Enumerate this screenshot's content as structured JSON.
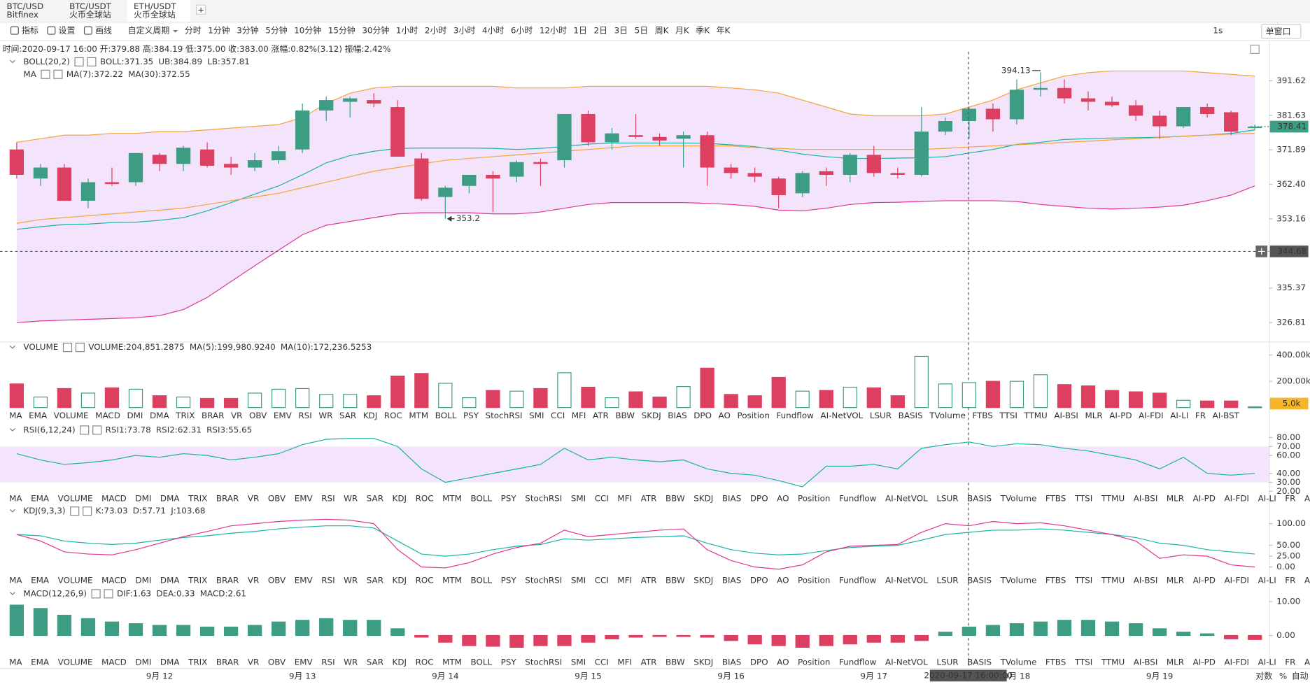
{
  "header": {
    "tabs": [
      {
        "pair": "BTC/USD",
        "exchange": "Bitfinex"
      },
      {
        "pair": "BTC/USDT",
        "exchange": "火币全球站"
      },
      {
        "pair": "ETH/USDT",
        "exchange": "火币全球站"
      }
    ],
    "add_tab": "+"
  },
  "toolbar": {
    "tools": [
      "指标",
      "设置",
      "画线"
    ],
    "custom_period": "自定义周期",
    "periods": [
      "分时",
      "1分钟",
      "3分钟",
      "5分钟",
      "10分钟",
      "15分钟",
      "30分钟",
      "1小时",
      "2小时",
      "3小时",
      "4小时",
      "6小时",
      "12小时",
      "1日",
      "2日",
      "3日",
      "5日",
      "周K",
      "月K",
      "季K",
      "年K"
    ],
    "active_period": 10,
    "refresh": "1s",
    "window_mode": "单窗口"
  },
  "info_line": [
    "时间:2020-09-17 16:00",
    "开:379.88",
    "高:384.19",
    "低:375.00",
    "收:383.00",
    "涨幅:0.82%(3.12)",
    "振幅:2.42%"
  ],
  "indicator_list": [
    "MA",
    "EMA",
    "VOLUME",
    "MACD",
    "DMI",
    "DMA",
    "TRIX",
    "BRAR",
    "VR",
    "OBV",
    "EMV",
    "RSI",
    "WR",
    "SAR",
    "KDJ",
    "ROC",
    "MTM",
    "BOLL",
    "PSY",
    "StochRSI",
    "SMI",
    "CCI",
    "MFI",
    "ATR",
    "BBW",
    "SKDJ",
    "BIAS",
    "DPO",
    "AO",
    "Position",
    "Fundflow",
    "AI-NetVOL",
    "LSUR",
    "BASIS",
    "TVolume",
    "FTBS",
    "TTSI",
    "TTMU",
    "AI-BSI",
    "MLR",
    "AI-PD",
    "AI-FDI",
    "AI-LI",
    "FR",
    "AI-BST"
  ],
  "footer": {
    "log": "对数",
    "percent": "%",
    "auto": "自动"
  },
  "chart_data": [
    {
      "type": "candlestick",
      "log": true,
      "up_color": "#3d9c84",
      "down_color": "#dd3f60",
      "legend_rows": [
        {
          "title": "BOLL(20,2)",
          "items": [
            {
              "text": "BOLL:371.35",
              "color": "#17b3a3"
            },
            {
              "text": "UB:384.89",
              "color": "#e8a21f"
            },
            {
              "text": "LB:357.81",
              "color": "#e0358f"
            }
          ]
        },
        {
          "title": "MA",
          "items": [
            {
              "text": "MA(7):372.22",
              "color": "#17b3a3"
            },
            {
              "text": "MA(30):372.55",
              "color": "#e8a21f"
            }
          ]
        }
      ],
      "categories": [
        null,
        null,
        null,
        null,
        null,
        null,
        "9月 12",
        null,
        null,
        null,
        null,
        null,
        "9月 13",
        null,
        null,
        null,
        null,
        null,
        "9月 14",
        null,
        null,
        null,
        null,
        null,
        "9月 15",
        null,
        null,
        null,
        null,
        null,
        "9月 16",
        null,
        null,
        null,
        null,
        null,
        "9月 17",
        null,
        null,
        null,
        null,
        null,
        "9月 18",
        null,
        null,
        null,
        null,
        null,
        "9月 19",
        null,
        null,
        null,
        null
      ],
      "open": [
        372,
        364,
        367,
        358,
        363,
        363,
        370.5,
        368,
        372,
        368,
        367,
        369,
        372,
        383,
        385.5,
        386,
        384,
        369.5,
        359,
        362,
        365,
        364.5,
        368.5,
        369,
        382,
        374,
        376,
        375.5,
        375,
        376,
        367,
        365.5,
        364,
        360,
        366,
        365,
        370.5,
        365.5,
        365,
        377,
        380,
        383.5,
        380.5,
        389,
        389.5,
        386.5,
        385.5,
        384.5,
        381.5,
        378.5,
        384,
        382.5,
        378
      ],
      "high": [
        374,
        368,
        368,
        364,
        367,
        371,
        371,
        373,
        374,
        370,
        371,
        373,
        385,
        387,
        387,
        388,
        386,
        371,
        362,
        365,
        366,
        369,
        369.5,
        382,
        383,
        378,
        382,
        376.5,
        377,
        377,
        368,
        367,
        364.5,
        366,
        367,
        371,
        373,
        367,
        384,
        381,
        384,
        385,
        392,
        394.13,
        392,
        388.5,
        387,
        386,
        383,
        384,
        385,
        383,
        379
      ],
      "low": [
        364,
        362,
        358,
        356,
        362,
        362,
        366,
        366,
        367,
        365,
        366,
        368,
        371,
        380,
        381,
        384,
        370,
        358,
        353.2,
        360,
        355,
        363,
        362,
        367,
        373,
        372,
        375,
        373,
        367,
        362,
        364,
        363,
        356,
        359,
        362,
        363,
        364.5,
        364,
        364.5,
        376,
        375,
        377,
        379,
        387,
        385,
        383,
        384,
        380,
        375,
        378,
        381,
        376,
        377.5
      ],
      "close": [
        365,
        367,
        358,
        363,
        362.5,
        371,
        368,
        372.5,
        367.5,
        367,
        369,
        371.5,
        383,
        386,
        386.5,
        385,
        370,
        358.5,
        361.5,
        365,
        364,
        368.5,
        368,
        382,
        374,
        376.5,
        375.5,
        374.5,
        376,
        367,
        365.5,
        364.5,
        359.5,
        365.5,
        365,
        370.5,
        365.5,
        365,
        377,
        380,
        383.5,
        380.5,
        389,
        389.5,
        386.5,
        385.5,
        384.5,
        381.5,
        378.5,
        384,
        382,
        377,
        378.41
      ],
      "series": [
        {
          "color": "#f2a33a",
          "values": [
            374,
            375,
            376,
            376,
            376.5,
            376.5,
            377,
            377,
            377.5,
            378,
            378.5,
            379,
            381,
            385,
            388,
            389.5,
            390,
            390,
            390,
            390,
            390,
            389.5,
            389.5,
            389.5,
            390,
            390,
            390,
            390,
            390,
            390,
            389.5,
            389,
            388,
            386,
            384,
            382,
            381.5,
            381.5,
            381.5,
            382,
            384,
            386,
            389,
            391,
            393,
            394,
            394.5,
            394.5,
            394.5,
            394.5,
            394,
            393.5,
            393
          ]
        },
        {
          "color": "#17b3a3",
          "values": [
            350.4,
            351.1,
            351.7,
            351.8,
            352.2,
            352.3,
            352.8,
            353.5,
            355.3,
            357.5,
            359.8,
            362,
            365,
            368.3,
            370.3,
            371.5,
            372.3,
            372.4,
            372.4,
            372.4,
            372.3,
            372,
            372.3,
            372.8,
            373.5,
            373.8,
            373.8,
            373.8,
            373.8,
            373.7,
            373.3,
            372.8,
            371.8,
            370.7,
            370,
            369.5,
            369.5,
            369.6,
            369.7,
            370,
            371,
            372,
            373.4,
            374,
            374.8,
            375,
            375.2,
            375.3,
            375.4,
            375.7,
            376,
            376.5,
            377.5
          ]
        },
        {
          "color": "#e0358f",
          "values": [
            326.8,
            327.2,
            327.4,
            327.6,
            327.8,
            328,
            328.5,
            330,
            333,
            337,
            341,
            345,
            349,
            351.5,
            352.5,
            353.5,
            354.5,
            354.8,
            354.8,
            354.8,
            354.5,
            354.5,
            355,
            356,
            357,
            357.5,
            357.5,
            357.5,
            357.5,
            357.3,
            357,
            356.5,
            355.5,
            355.3,
            356,
            357,
            357.5,
            357.6,
            357.8,
            358,
            358,
            358,
            357.8,
            357,
            356.5,
            356,
            355.8,
            356,
            356.3,
            356.8,
            358,
            359.5,
            362
          ]
        },
        {
          "color": "#f2a33a",
          "values": [
            352,
            353,
            353.5,
            354,
            354.5,
            355,
            355.5,
            356,
            357,
            358,
            359,
            360,
            361.5,
            363,
            364.5,
            366,
            367,
            368,
            369,
            369.5,
            370,
            370.5,
            371,
            371.5,
            372,
            372.5,
            373,
            373,
            373,
            373,
            373,
            372.5,
            372.3,
            372,
            372,
            372,
            372,
            372,
            372,
            372.3,
            372.7,
            373,
            373.3,
            373.6,
            374,
            374.3,
            374.7,
            375,
            375.3,
            375.7,
            376,
            376.3,
            376.5
          ]
        }
      ],
      "band_color": "#f3e4fb",
      "ylim": [
        323,
        400.2
      ],
      "yticks": [
        391.62,
        381.63,
        371.89,
        {
          "value": 362.4,
          "label": "362.40"
        },
        353.16,
        335.37,
        326.81
      ],
      "crosshair_price": 344.68,
      "crosshair_time": "2020-09-17 16:00:00"
    },
    {
      "type": "bar",
      "legend_rows": [
        {
          "title": "VOLUME",
          "items": [
            {
              "text": "VOLUME:204,851.2875",
              "color": "#555555"
            },
            {
              "text": "MA(5):199,980.9240",
              "color": "#17b3a3"
            },
            {
              "text": "MA(10):172,236.5253",
              "color": "#e8a21f"
            }
          ]
        }
      ],
      "values": [
        180000,
        80000,
        145000,
        110000,
        150000,
        140000,
        90000,
        80000,
        70000,
        70000,
        110000,
        140000,
        145000,
        100000,
        100000,
        90000,
        240000,
        260000,
        185000,
        75000,
        130000,
        125000,
        145000,
        265000,
        155000,
        75000,
        120000,
        80000,
        160000,
        300000,
        100000,
        90000,
        230000,
        125000,
        130000,
        155000,
        150000,
        90000,
        390000,
        180000,
        190000,
        200000,
        200000,
        250000,
        175000,
        165000,
        130000,
        120000,
        110000,
        55000,
        50000,
        50000,
        5000
      ],
      "last_label": "5.0k",
      "ylim": [
        0,
        420000
      ],
      "yticks": [
        {
          "value": 400000,
          "label": "400.00k"
        },
        {
          "value": 200000,
          "label": "200.00k"
        }
      ]
    },
    {
      "type": "line",
      "legend_rows": [
        {
          "title": "RSI(6,12,24)",
          "items": [
            {
              "text": "RSI1:73.78",
              "color": "#17b3a3"
            },
            {
              "text": "RSI2:62.31",
              "color": "#e8a21f"
            },
            {
              "text": "RSI3:55.65",
              "color": "#e0358f"
            }
          ]
        }
      ],
      "series": [
        {
          "color": "#17b3a3",
          "values": [
            62,
            55,
            50,
            52,
            55,
            60,
            58,
            62,
            60,
            55,
            58,
            62,
            72,
            78,
            79,
            79,
            70,
            45,
            30,
            35,
            40,
            45,
            50,
            68,
            55,
            58,
            55,
            53,
            55,
            45,
            40,
            38,
            32,
            25,
            48,
            48,
            50,
            45,
            68,
            72,
            75,
            70,
            73,
            72,
            68,
            65,
            60,
            55,
            45,
            58,
            40,
            38,
            40
          ]
        }
      ],
      "ylim": [
        11,
        83.6
      ],
      "yticks": [
        {
          "value": 80,
          "label": "80.00"
        },
        {
          "value": 70,
          "label": "70.00"
        },
        {
          "value": 60,
          "label": "60.00"
        },
        {
          "value": 40,
          "label": "40.00"
        },
        {
          "value": 30,
          "label": "30.00"
        },
        {
          "value": 20,
          "label": "20.00"
        }
      ]
    },
    {
      "type": "line",
      "legend_rows": [
        {
          "title": "KDJ(9,3,3)",
          "items": [
            {
              "text": "K:73.03",
              "color": "#17b3a3"
            },
            {
              "text": "D:57.71",
              "color": "#e8a21f"
            },
            {
              "text": "J:103.68",
              "color": "#e0358f"
            }
          ]
        }
      ],
      "series": [
        {
          "color": "#17b3a3",
          "values": [
            75,
            72,
            60,
            55,
            52,
            55,
            62,
            68,
            72,
            78,
            82,
            88,
            92,
            95,
            95,
            90,
            60,
            30,
            25,
            30,
            40,
            48,
            52,
            65,
            62,
            65,
            68,
            70,
            72,
            55,
            40,
            32,
            28,
            30,
            38,
            45,
            48,
            50,
            62,
            75,
            80,
            85,
            85,
            88,
            85,
            80,
            75,
            68,
            55,
            50,
            40,
            35,
            30
          ]
        },
        {
          "color": "#e0358f",
          "values": [
            75,
            60,
            35,
            30,
            28,
            40,
            55,
            70,
            82,
            95,
            100,
            105,
            108,
            110,
            108,
            100,
            40,
            0,
            -2,
            10,
            30,
            45,
            55,
            85,
            70,
            75,
            80,
            85,
            88,
            40,
            15,
            0,
            -5,
            5,
            35,
            48,
            50,
            52,
            80,
            100,
            95,
            105,
            100,
            102,
            95,
            85,
            75,
            60,
            20,
            28,
            25,
            5,
            0
          ]
        }
      ],
      "ylim": [
        -13.5,
        113.5
      ],
      "yticks": [
        {
          "value": 100,
          "label": "100.00"
        },
        {
          "value": 50,
          "label": "50.00"
        },
        {
          "value": 25,
          "label": "25.00"
        },
        {
          "value": 0,
          "label": "0.00"
        }
      ]
    },
    {
      "type": "bar",
      "legend_rows": [
        {
          "title": "MACD(12,26,9)",
          "items": [
            {
              "text": "DIF:1.63",
              "color": "#17b3a3"
            },
            {
              "text": "DEA:0.33",
              "color": "#e8a21f"
            },
            {
              "text": "MACD:2.61",
              "color": "#e0358f"
            }
          ]
        }
      ],
      "values": [
        9,
        8,
        6,
        5,
        4,
        3.5,
        3,
        3,
        2.5,
        2.5,
        3,
        4,
        4.5,
        5,
        4.5,
        4.5,
        2,
        -0.5,
        -2,
        -3,
        -3.2,
        -3.5,
        -3,
        -3,
        -2,
        -1,
        -0.5,
        -0.3,
        -0.3,
        -0.5,
        -1.5,
        -2.5,
        -3,
        -3.5,
        -3,
        -2.5,
        -2,
        -2,
        -1.5,
        1,
        2.5,
        3,
        3.5,
        4,
        4.5,
        4.5,
        4,
        3.5,
        2,
        1,
        0.5,
        -1,
        -1.2
      ],
      "ylim": [
        -5.7,
        12.1
      ],
      "yticks": [
        {
          "value": 10,
          "label": "10.00"
        },
        {
          "value": 0,
          "label": "0.00"
        }
      ]
    }
  ]
}
